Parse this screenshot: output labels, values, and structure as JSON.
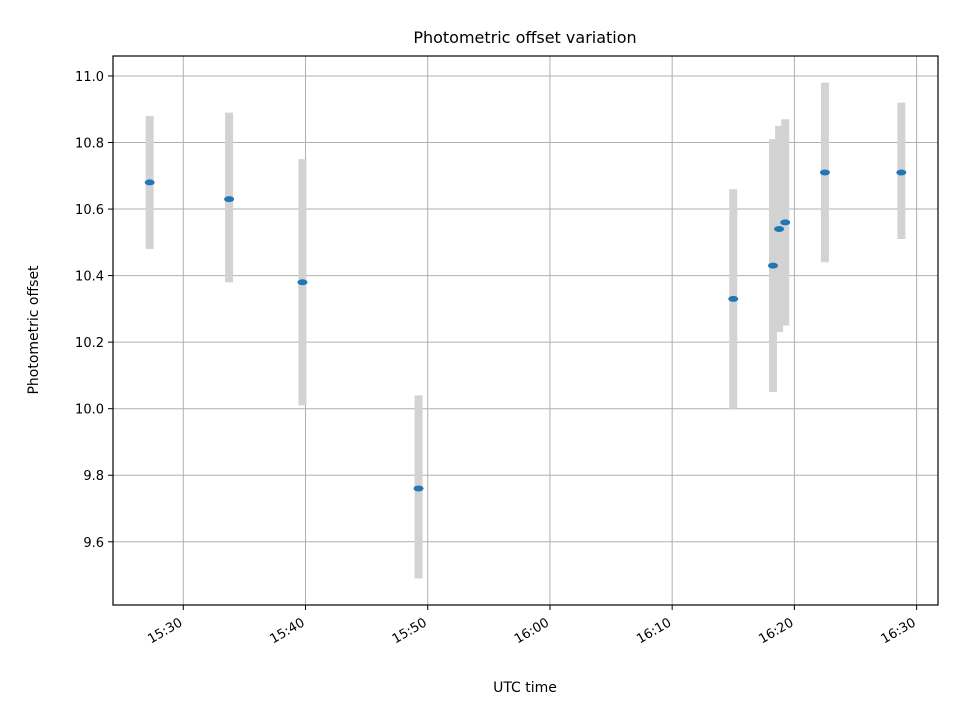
{
  "chart_data": {
    "type": "scatter",
    "title": "Photometric offset variation",
    "xlabel": "UTC time",
    "ylabel": "Photometric offset",
    "x_ticks": [
      "15:30",
      "15:40",
      "15:50",
      "16:00",
      "16:10",
      "16:20",
      "16:30"
    ],
    "y_ticks": [
      "9.6",
      "9.8",
      "10.0",
      "10.2",
      "10.4",
      "10.6",
      "10.8",
      "11.0"
    ],
    "xlim": [
      "15:24:15",
      "16:31:45"
    ],
    "ylim": [
      9.41,
      11.06
    ],
    "grid": true,
    "colors": {
      "marker": "#1f77b4",
      "errorbar": "#d3d3d3",
      "grid": "#b0b0b0"
    },
    "series": [
      {
        "points": [
          {
            "x": "15:27:15",
            "y": 10.68,
            "yerr_low": 10.48,
            "yerr_high": 10.88
          },
          {
            "x": "15:33:45",
            "y": 10.63,
            "yerr_low": 10.38,
            "yerr_high": 10.89
          },
          {
            "x": "15:39:45",
            "y": 10.38,
            "yerr_low": 10.01,
            "yerr_high": 10.75
          },
          {
            "x": "15:49:15",
            "y": 9.76,
            "yerr_low": 9.49,
            "yerr_high": 10.04
          },
          {
            "x": "16:15:00",
            "y": 10.33,
            "yerr_low": 10.0,
            "yerr_high": 10.66
          },
          {
            "x": "16:18:15",
            "y": 10.43,
            "yerr_low": 10.05,
            "yerr_high": 10.81
          },
          {
            "x": "16:18:45",
            "y": 10.54,
            "yerr_low": 10.23,
            "yerr_high": 10.85
          },
          {
            "x": "16:19:15",
            "y": 10.56,
            "yerr_low": 10.25,
            "yerr_high": 10.87
          },
          {
            "x": "16:22:30",
            "y": 10.71,
            "yerr_low": 10.44,
            "yerr_high": 10.98
          },
          {
            "x": "16:28:45",
            "y": 10.71,
            "yerr_low": 10.51,
            "yerr_high": 10.92
          }
        ]
      }
    ]
  }
}
